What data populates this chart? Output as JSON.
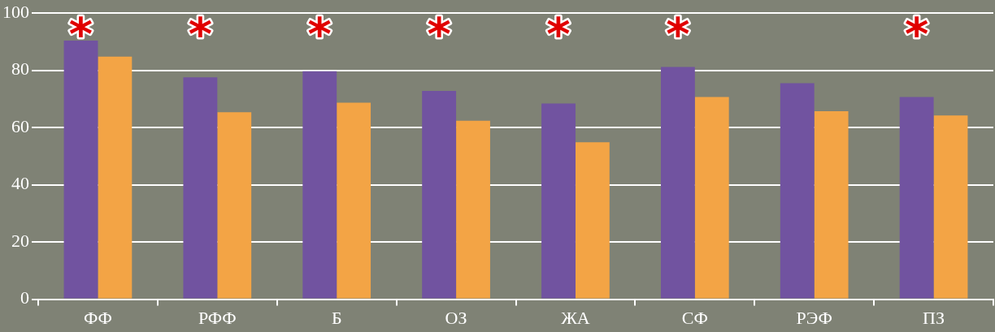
{
  "chart_data": {
    "type": "bar",
    "categories": [
      "ФФ",
      "РФФ",
      "Б",
      "ОЗ",
      "ЖА",
      "СФ",
      "РЭФ",
      "ПЗ"
    ],
    "series": [
      {
        "color": "#7153a0",
        "values": [
          90.4,
          77.6,
          79.7,
          72.8,
          68.4,
          81.2,
          75.5,
          70.7
        ],
        "value_labels": [
          "*",
          "*",
          "*",
          "*",
          "*",
          "*",
          null,
          "*"
        ]
      },
      {
        "color": "#f3a445",
        "values": [
          84.8,
          65.4,
          68.7,
          62.4,
          54.9,
          70.7,
          65.7,
          64.2
        ]
      }
    ],
    "ylim": [
      0,
      100
    ],
    "yticks": [
      0,
      20,
      40,
      60,
      80,
      100
    ],
    "grid": "y",
    "legend": false
  }
}
